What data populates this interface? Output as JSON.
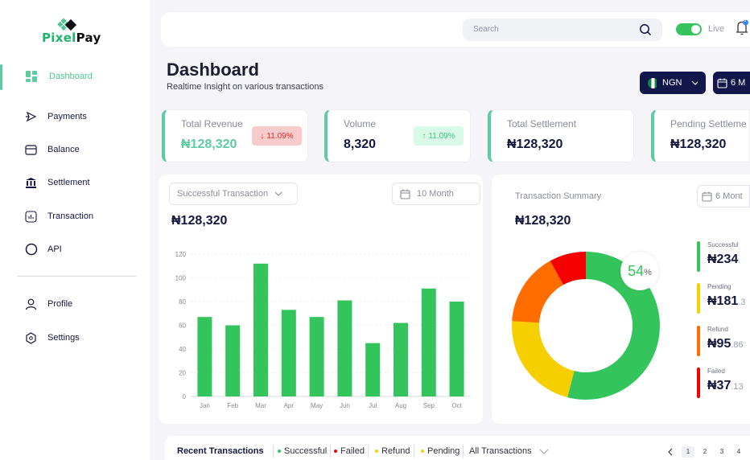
{
  "app": {
    "brand_a": "Pixel",
    "brand_b": "Pay"
  },
  "sidebar": {
    "items": [
      {
        "label": "Dashboard",
        "icon": "grid-icon",
        "active": true
      },
      {
        "label": "Payments",
        "icon": "send-icon"
      },
      {
        "label": "Balance",
        "icon": "wallet-icon"
      },
      {
        "label": "Settlement",
        "icon": "bank-icon"
      },
      {
        "label": "Transaction",
        "icon": "chart-icon"
      },
      {
        "label": "API",
        "icon": "circle-icon"
      }
    ],
    "bottom_items": [
      {
        "label": "Profile",
        "icon": "user-icon"
      },
      {
        "label": "Settings",
        "icon": "hexagon-icon"
      }
    ]
  },
  "topbar": {
    "search_placeholder": "Search",
    "live_label": "Live",
    "live_on": true,
    "notification_count": "6"
  },
  "header": {
    "title": "Dashboard",
    "subtitle": "Realtime Insight on various transactions",
    "currency": "NGN",
    "date_range": "6 M"
  },
  "stats": [
    {
      "label": "Total Revenue",
      "value": "₦128,320",
      "badge": "11.09%",
      "trend": "down"
    },
    {
      "label": "Volume",
      "value": "8,320",
      "badge": "11.09%",
      "trend": "up"
    },
    {
      "label": "Total Settlement",
      "value": "₦128,320"
    },
    {
      "label": "Pending Settleme",
      "value": "₦128,320"
    }
  ],
  "colors": {
    "accent": "#5ecba1",
    "navy": "#12164a",
    "success": "#33c45c",
    "pending": "#f5cf00",
    "refund": "#ff6d00",
    "failed": "#f50000"
  },
  "bar_panel": {
    "filter": "Successful Transaction",
    "period": "10 Month",
    "total": "₦128,320"
  },
  "chart_data": [
    {
      "type": "bar",
      "categories": [
        "Jan",
        "Feb",
        "Mar",
        "Apr",
        "May",
        "Jun",
        "Jul",
        "Aug",
        "Sep",
        "Oct"
      ],
      "values": [
        67,
        60,
        112,
        73,
        67,
        81,
        45,
        62,
        91,
        80
      ],
      "ylim": [
        0,
        120
      ],
      "yticks": [
        0,
        20,
        40,
        60,
        80,
        100,
        120
      ],
      "grid": true,
      "color": "#33c45c"
    },
    {
      "type": "pie",
      "donut": true,
      "categories": [
        "Successful",
        "Pending",
        "Refund",
        "Failed"
      ],
      "values": [
        54,
        22,
        16,
        8
      ],
      "colors": [
        "#33c45c",
        "#f5cf00",
        "#ff6d00",
        "#f50000"
      ],
      "center_label": "54",
      "center_unit": "%"
    }
  ],
  "summary": {
    "title": "Transaction Summary",
    "period": "6 Mont",
    "total": "₦128,320",
    "legend": [
      {
        "label": "Successful",
        "whole": "₦234",
        "dec": "."
      },
      {
        "label": "Pending",
        "whole": "₦181",
        "dec": ".3"
      },
      {
        "label": "Refund",
        "whole": "₦95",
        "dec": ".86"
      },
      {
        "label": "Failed",
        "whole": "₦37",
        "dec": ".13"
      }
    ]
  },
  "recent": {
    "title": "Recent Transactions",
    "filters": [
      "Successful",
      "Failed",
      "Refund",
      "Pending"
    ],
    "all": "All Transactions",
    "pages": [
      "1",
      "2",
      "3",
      "4"
    ]
  }
}
